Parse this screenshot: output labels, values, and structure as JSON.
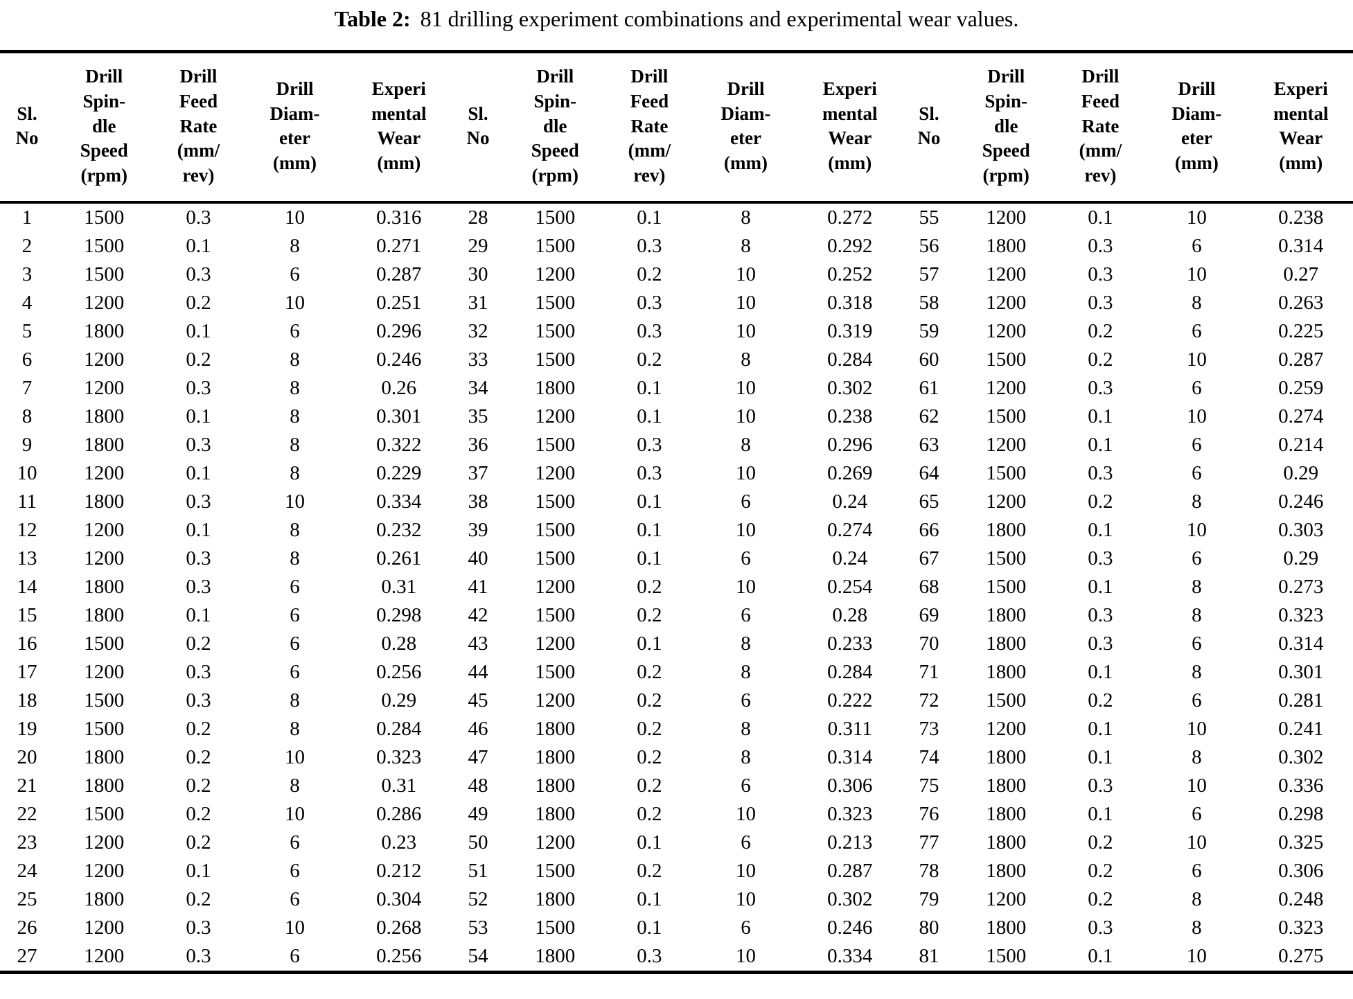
{
  "title": {
    "label": "Table 2:",
    "text": "81 drilling experiment combinations and experimental wear values."
  },
  "table": {
    "groups": 3,
    "rows_per_group": 27,
    "column_keys": [
      "sl-no",
      "spindle-speed",
      "feed-rate",
      "diameter",
      "wear"
    ],
    "column_headers": [
      "Sl.\nNo",
      "Drill\nSpin-\ndle\nSpeed\n(rpm)",
      "Drill\nFeed\nRate\n(mm/\nrev)",
      "Drill\nDiam-\neter\n(mm)",
      "Experi\nmental\nWear\n(mm)"
    ],
    "column_widths_pct": [
      4.0,
      7.4,
      6.55,
      7.7,
      7.7
    ],
    "experiments": [
      [
        1,
        1500,
        0.3,
        10,
        0.316
      ],
      [
        2,
        1500,
        0.1,
        8,
        0.271
      ],
      [
        3,
        1500,
        0.3,
        6,
        0.287
      ],
      [
        4,
        1200,
        0.2,
        10,
        0.251
      ],
      [
        5,
        1800,
        0.1,
        6,
        0.296
      ],
      [
        6,
        1200,
        0.2,
        8,
        0.246
      ],
      [
        7,
        1200,
        0.3,
        8,
        0.26
      ],
      [
        8,
        1800,
        0.1,
        8,
        0.301
      ],
      [
        9,
        1800,
        0.3,
        8,
        0.322
      ],
      [
        10,
        1200,
        0.1,
        8,
        0.229
      ],
      [
        11,
        1800,
        0.3,
        10,
        0.334
      ],
      [
        12,
        1200,
        0.1,
        8,
        0.232
      ],
      [
        13,
        1200,
        0.3,
        8,
        0.261
      ],
      [
        14,
        1800,
        0.3,
        6,
        0.31
      ],
      [
        15,
        1800,
        0.1,
        6,
        0.298
      ],
      [
        16,
        1500,
        0.2,
        6,
        0.28
      ],
      [
        17,
        1200,
        0.3,
        6,
        0.256
      ],
      [
        18,
        1500,
        0.3,
        8,
        0.29
      ],
      [
        19,
        1500,
        0.2,
        8,
        0.284
      ],
      [
        20,
        1800,
        0.2,
        10,
        0.323
      ],
      [
        21,
        1800,
        0.2,
        8,
        0.31
      ],
      [
        22,
        1500,
        0.2,
        10,
        0.286
      ],
      [
        23,
        1200,
        0.2,
        6,
        0.23
      ],
      [
        24,
        1200,
        0.1,
        6,
        0.212
      ],
      [
        25,
        1800,
        0.2,
        6,
        0.304
      ],
      [
        26,
        1200,
        0.3,
        10,
        0.268
      ],
      [
        27,
        1200,
        0.3,
        6,
        0.256
      ],
      [
        28,
        1500,
        0.1,
        8,
        0.272
      ],
      [
        29,
        1500,
        0.3,
        8,
        0.292
      ],
      [
        30,
        1200,
        0.2,
        10,
        0.252
      ],
      [
        31,
        1500,
        0.3,
        10,
        0.318
      ],
      [
        32,
        1500,
        0.3,
        10,
        0.319
      ],
      [
        33,
        1500,
        0.2,
        8,
        0.284
      ],
      [
        34,
        1800,
        0.1,
        10,
        0.302
      ],
      [
        35,
        1200,
        0.1,
        10,
        0.238
      ],
      [
        36,
        1500,
        0.3,
        8,
        0.296
      ],
      [
        37,
        1200,
        0.3,
        10,
        0.269
      ],
      [
        38,
        1500,
        0.1,
        6,
        0.24
      ],
      [
        39,
        1500,
        0.1,
        10,
        0.274
      ],
      [
        40,
        1500,
        0.1,
        6,
        0.24
      ],
      [
        41,
        1200,
        0.2,
        10,
        0.254
      ],
      [
        42,
        1500,
        0.2,
        6,
        0.28
      ],
      [
        43,
        1200,
        0.1,
        8,
        0.233
      ],
      [
        44,
        1500,
        0.2,
        8,
        0.284
      ],
      [
        45,
        1200,
        0.2,
        6,
        0.222
      ],
      [
        46,
        1800,
        0.2,
        8,
        0.311
      ],
      [
        47,
        1800,
        0.2,
        8,
        0.314
      ],
      [
        48,
        1800,
        0.2,
        6,
        0.306
      ],
      [
        49,
        1800,
        0.2,
        10,
        0.323
      ],
      [
        50,
        1200,
        0.1,
        6,
        0.213
      ],
      [
        51,
        1500,
        0.2,
        10,
        0.287
      ],
      [
        52,
        1800,
        0.1,
        10,
        0.302
      ],
      [
        53,
        1500,
        0.1,
        6,
        0.246
      ],
      [
        54,
        1800,
        0.3,
        10,
        0.334
      ],
      [
        55,
        1200,
        0.1,
        10,
        0.238
      ],
      [
        56,
        1800,
        0.3,
        6,
        0.314
      ],
      [
        57,
        1200,
        0.3,
        10,
        0.27
      ],
      [
        58,
        1200,
        0.3,
        8,
        0.263
      ],
      [
        59,
        1200,
        0.2,
        6,
        0.225
      ],
      [
        60,
        1500,
        0.2,
        10,
        0.287
      ],
      [
        61,
        1200,
        0.3,
        6,
        0.259
      ],
      [
        62,
        1500,
        0.1,
        10,
        0.274
      ],
      [
        63,
        1200,
        0.1,
        6,
        0.214
      ],
      [
        64,
        1500,
        0.3,
        6,
        0.29
      ],
      [
        65,
        1200,
        0.2,
        8,
        0.246
      ],
      [
        66,
        1800,
        0.1,
        10,
        0.303
      ],
      [
        67,
        1500,
        0.3,
        6,
        0.29
      ],
      [
        68,
        1500,
        0.1,
        8,
        0.273
      ],
      [
        69,
        1800,
        0.3,
        8,
        0.323
      ],
      [
        70,
        1800,
        0.3,
        6,
        0.314
      ],
      [
        71,
        1800,
        0.1,
        8,
        0.301
      ],
      [
        72,
        1500,
        0.2,
        6,
        0.281
      ],
      [
        73,
        1200,
        0.1,
        10,
        0.241
      ],
      [
        74,
        1800,
        0.1,
        8,
        0.302
      ],
      [
        75,
        1800,
        0.3,
        10,
        0.336
      ],
      [
        76,
        1800,
        0.1,
        6,
        0.298
      ],
      [
        77,
        1800,
        0.2,
        10,
        0.325
      ],
      [
        78,
        1800,
        0.2,
        6,
        0.306
      ],
      [
        79,
        1200,
        0.2,
        8,
        0.248
      ],
      [
        80,
        1800,
        0.3,
        8,
        0.323
      ],
      [
        81,
        1500,
        0.1,
        10,
        0.275
      ]
    ]
  }
}
